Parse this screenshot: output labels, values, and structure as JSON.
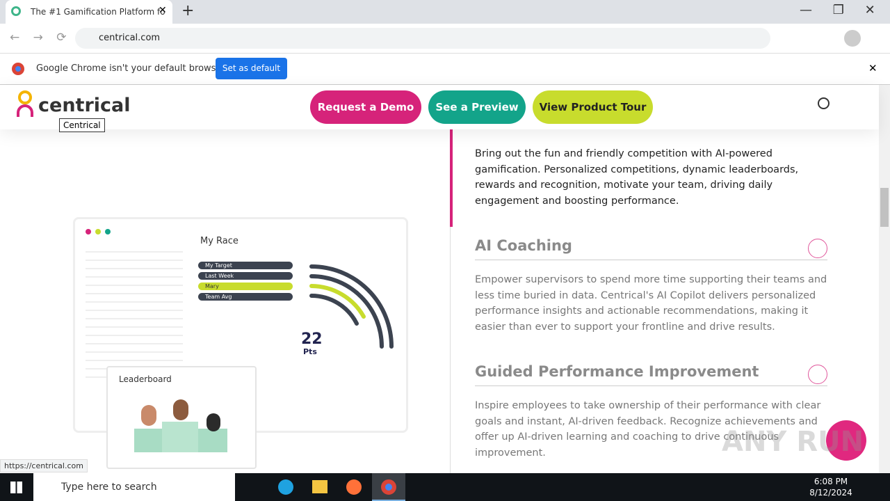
{
  "browser": {
    "tab_title": "The #1 Gamification Platform fo",
    "url": "centrical.com",
    "infobar": {
      "message": "Google Chrome isn't your default browser",
      "button": "Set as default"
    },
    "status_url": "https://centrical.com"
  },
  "header": {
    "logo": "centrical",
    "logo_tooltip": "Centrical",
    "buttons": [
      "Request a Demo",
      "See a Preview",
      "View Product Tour"
    ]
  },
  "content": {
    "intro": "Bring out the fun and friendly competition with AI-powered gamification. Personalized competitions, dynamic leaderboards, rewards and recognition, motivate your team, driving daily engagement and boosting performance.",
    "sections": [
      {
        "title": "AI Coaching",
        "body": "Empower supervisors to spend more time supporting their teams and less time buried in data. Centrical's AI Copilot delivers personalized performance insights and actionable recommendations, making it easier than ever to support your frontline and drive results."
      },
      {
        "title": "Guided Performance Improvement",
        "body": "Inspire employees to take ownership of their performance with clear goals and instant, AI-driven feedback. Recognize achievements and offer up AI-driven learning and coaching to drive continuous improvement."
      }
    ]
  },
  "illustration": {
    "title": "My Race",
    "legend": [
      "My Target",
      "Last Week",
      "Mary",
      "Team Avg"
    ],
    "points": "22",
    "points_unit": "Pts",
    "leaderboard": "Leaderboard"
  },
  "taskbar": {
    "search": "Type here to search",
    "time": "6:08 PM",
    "date": "8/12/2024"
  },
  "watermark": "ANY RUN"
}
